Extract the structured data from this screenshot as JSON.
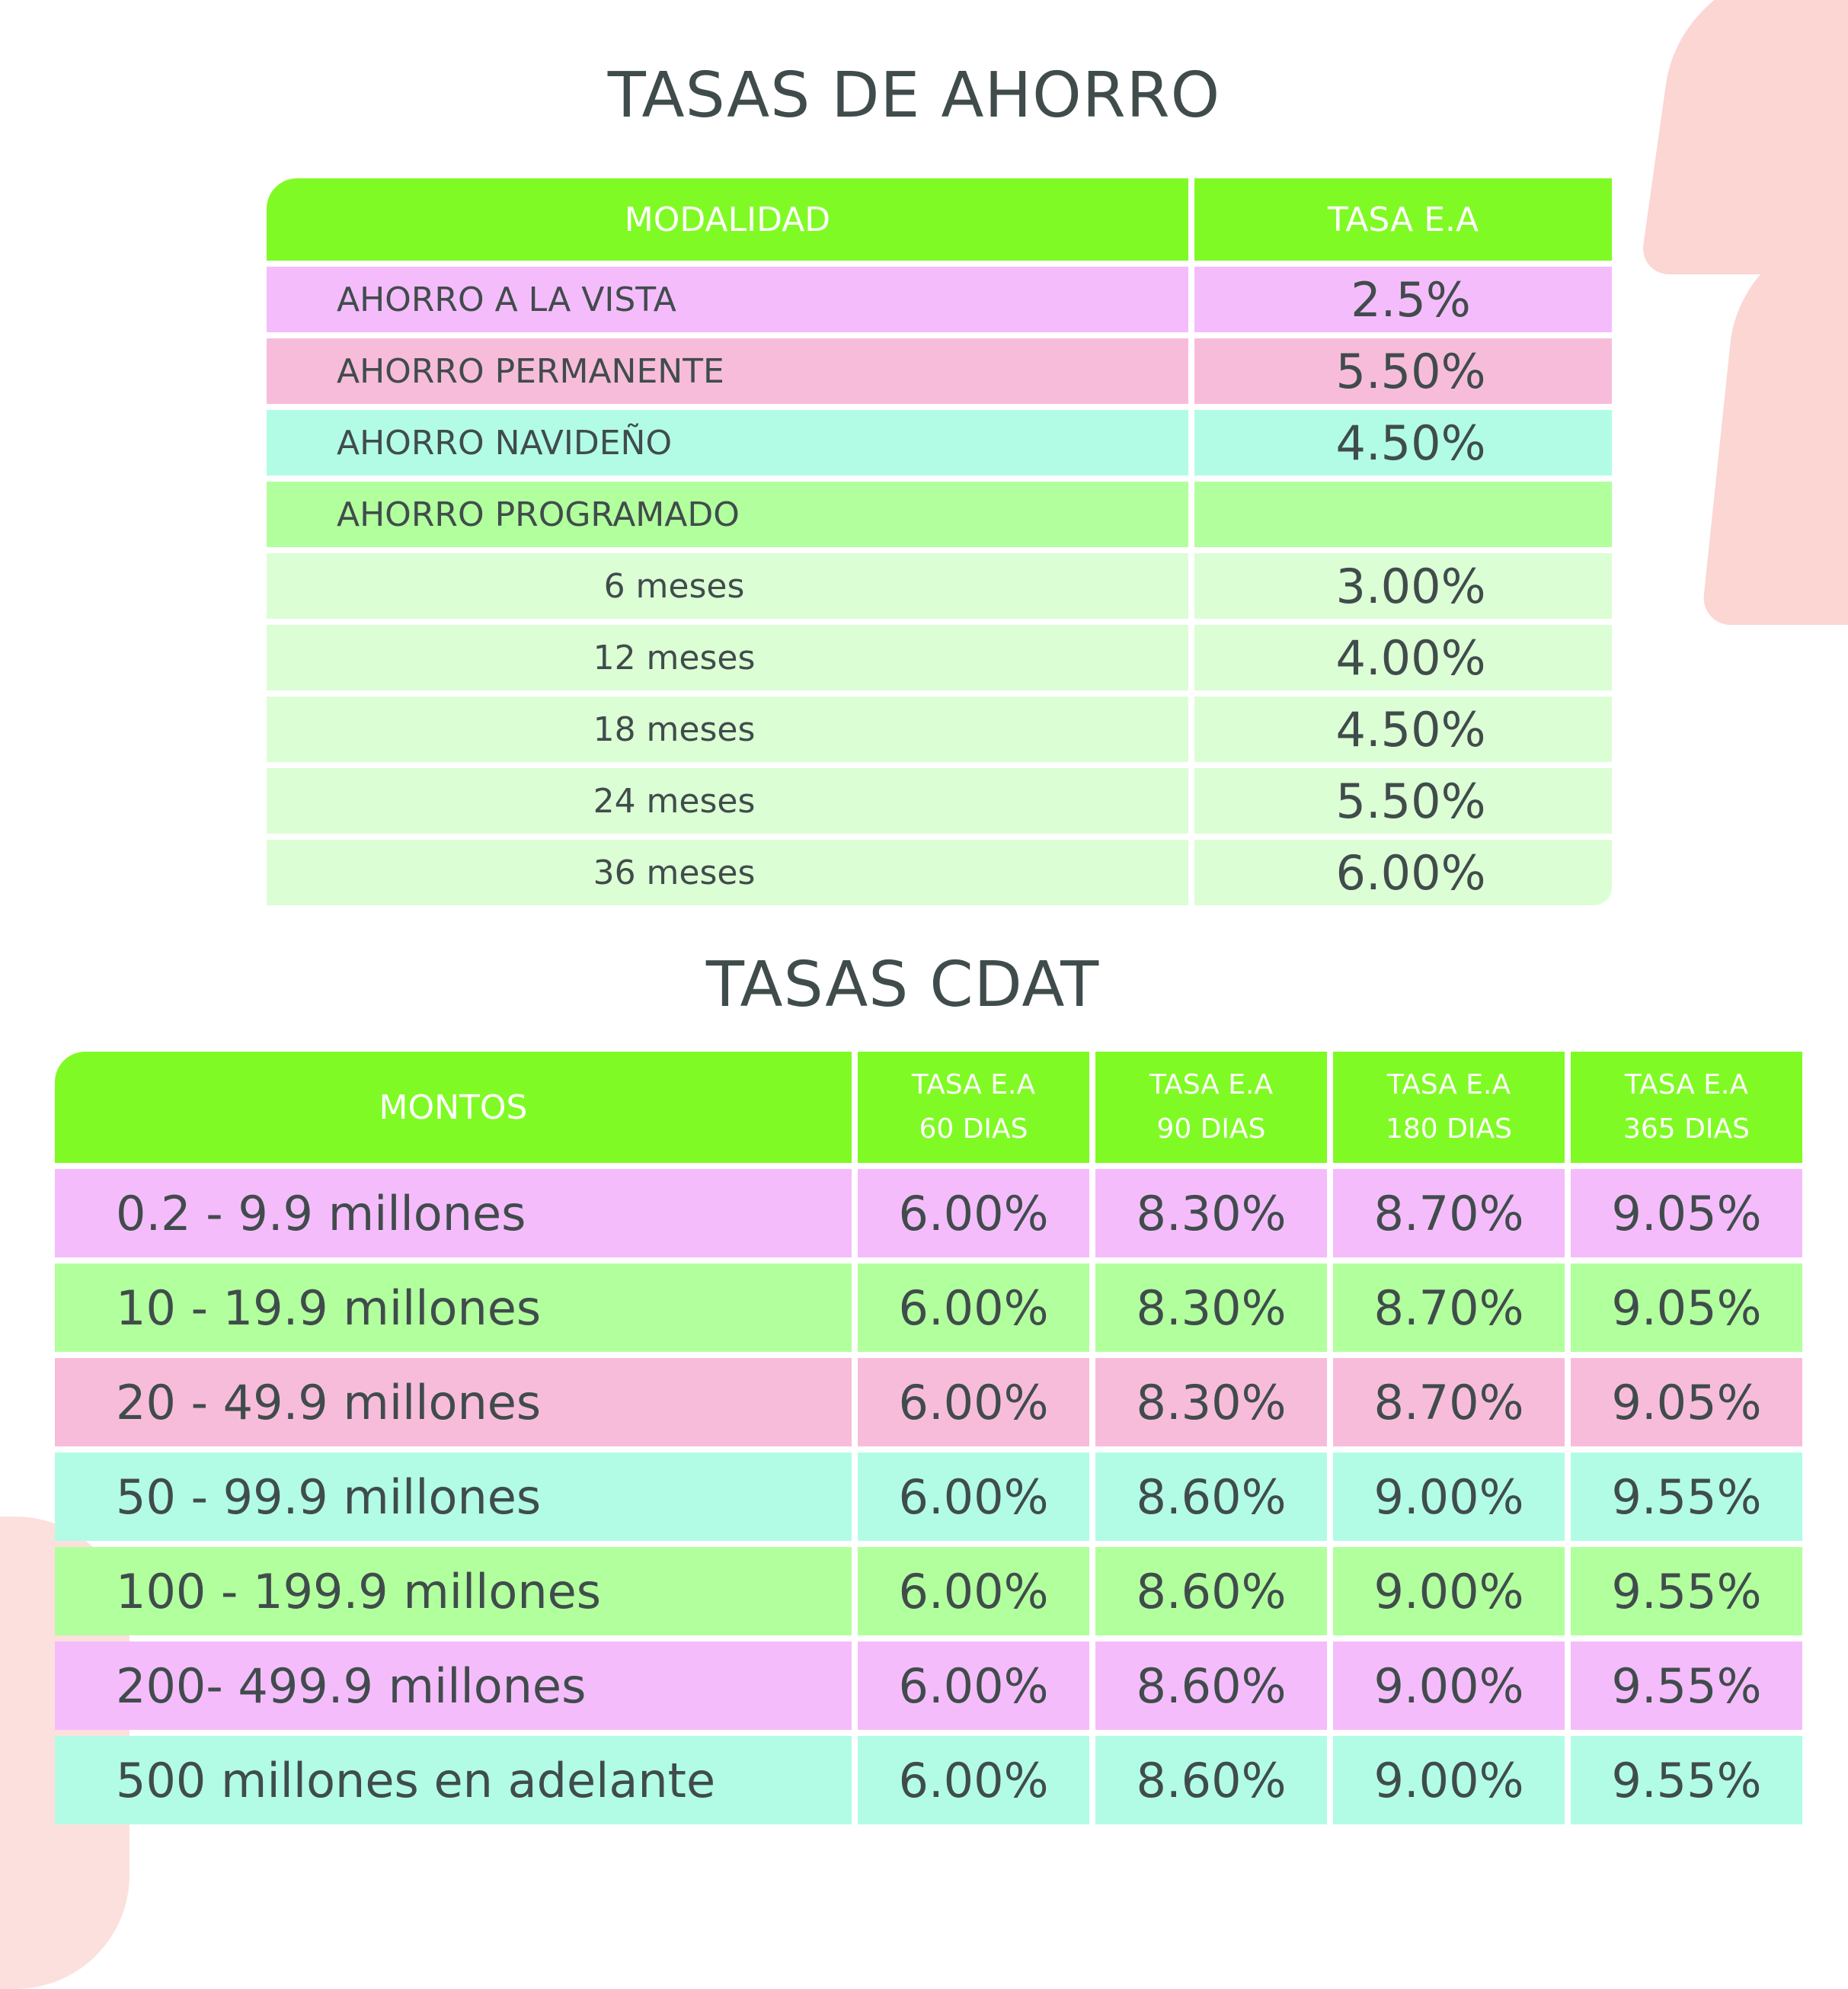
{
  "ahorro": {
    "title": "TASAS DE AHORRO",
    "headers": [
      "MODALIDAD",
      "TASA E.A"
    ],
    "rows": [
      {
        "label": "AHORRO A LA VISTA",
        "rate": "2.5%",
        "color": "#f5bcfb"
      },
      {
        "label": "AHORRO PERMANENTE",
        "rate": "5.50%",
        "color": "#f8bcdb"
      },
      {
        "label": "AHORRO NAVIDEÑO",
        "rate": "4.50%",
        "color": "#b2fce6"
      },
      {
        "label": "AHORRO PROGRAMADO",
        "rate": "",
        "color": "#b2ff9d"
      },
      {
        "label": "6 meses",
        "rate": "3.00%",
        "color": "#dcfed5"
      },
      {
        "label": "12 meses",
        "rate": "4.00%",
        "color": "#dcfed5"
      },
      {
        "label": "18 meses",
        "rate": "4.50%",
        "color": "#dcfed5"
      },
      {
        "label": "24 meses",
        "rate": "5.50%",
        "color": "#dcfed5"
      },
      {
        "label": "36 meses",
        "rate": "6.00%",
        "color": "#dcfed5"
      }
    ]
  },
  "cdat": {
    "title": "TASAS CDAT",
    "headers": [
      {
        "line1": "MONTOS",
        "line2": ""
      },
      {
        "line1": "TASA E.A",
        "line2": "60 DIAS"
      },
      {
        "line1": "TASA E.A",
        "line2": "90 DIAS"
      },
      {
        "line1": "TASA E.A",
        "line2": "180 DIAS"
      },
      {
        "line1": "TASA E.A",
        "line2": "365 DIAS"
      }
    ],
    "rows": [
      {
        "label": "0.2 - 9.9 millones",
        "rates": [
          "6.00%",
          "8.30%",
          "8.70%",
          "9.05%"
        ],
        "color": "#f5bcfb"
      },
      {
        "label": "10 - 19.9 millones",
        "rates": [
          "6.00%",
          "8.30%",
          "8.70%",
          "9.05%"
        ],
        "color": "#b2ff9d"
      },
      {
        "label": "20 - 49.9 millones",
        "rates": [
          "6.00%",
          "8.30%",
          "8.70%",
          "9.05%"
        ],
        "color": "#f8bcdb"
      },
      {
        "label": "50 - 99.9 millones",
        "rates": [
          "6.00%",
          "8.60%",
          "9.00%",
          "9.55%"
        ],
        "color": "#b2fce6"
      },
      {
        "label": "100 - 199.9 millones",
        "rates": [
          "6.00%",
          "8.60%",
          "9.00%",
          "9.55%"
        ],
        "color": "#b2ff9d"
      },
      {
        "label": "200- 499.9 millones",
        "rates": [
          "6.00%",
          "8.60%",
          "9.00%",
          "9.55%"
        ],
        "color": "#f5bcfb"
      },
      {
        "label": "500 millones en adelante",
        "rates": [
          "6.00%",
          "8.60%",
          "9.00%",
          "9.55%"
        ],
        "color": "#b2fce6"
      }
    ]
  },
  "colors": {
    "header_green": "#80fa24",
    "decor_pink": "#fbd6d2",
    "text": "#404c4c"
  }
}
